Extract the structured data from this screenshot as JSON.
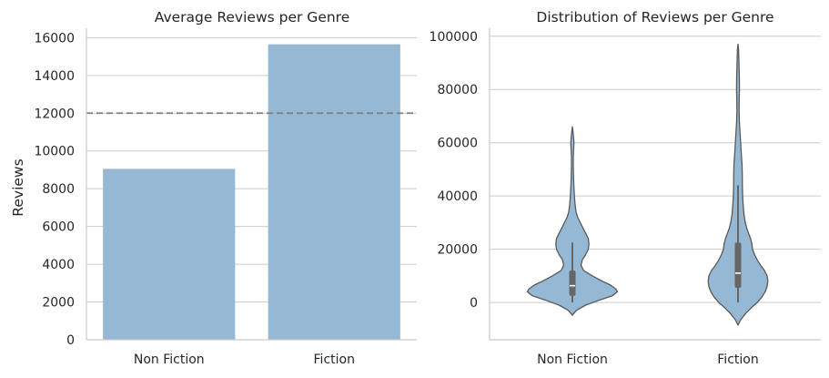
{
  "chart_data": [
    {
      "type": "bar",
      "title": "Average Reviews per Genre",
      "xlabel": "",
      "ylabel": "Reviews",
      "categories": [
        "Non Fiction",
        "Fiction"
      ],
      "values": [
        9050,
        15650
      ],
      "ylim": [
        0,
        16500
      ],
      "yticks": [
        0,
        2000,
        4000,
        6000,
        8000,
        10000,
        12000,
        14000,
        16000
      ],
      "ytick_labels": [
        "0",
        "2000",
        "4000",
        "6000",
        "8000",
        "10000",
        "12000",
        "14000",
        "16000"
      ],
      "reference_line": 12000,
      "grid": true,
      "color": "#95b8d4"
    },
    {
      "type": "violin",
      "title": "Distribution of Reviews per Genre",
      "xlabel": "",
      "ylabel": "",
      "categories": [
        "Non Fiction",
        "Fiction"
      ],
      "ylim": [
        -14000,
        103000
      ],
      "yticks": [
        0,
        20000,
        40000,
        60000,
        80000,
        100000
      ],
      "ytick_labels": [
        "0",
        "20000",
        "40000",
        "60000",
        "80000",
        "100000"
      ],
      "grid": true,
      "color": "#95b8d4",
      "violins": [
        {
          "category": "Non Fiction",
          "range": [
            -4800,
            66000
          ],
          "q1": 2500,
          "median": 6300,
          "q3": 12000,
          "whisker_low": 0,
          "whisker_high": 22500,
          "profile": [
            [
              -4800,
              0.0
            ],
            [
              -3000,
              0.06
            ],
            [
              -1000,
              0.2
            ],
            [
              1000,
              0.42
            ],
            [
              2500,
              0.6
            ],
            [
              4000,
              0.68
            ],
            [
              5000,
              0.66
            ],
            [
              6500,
              0.58
            ],
            [
              8000,
              0.45
            ],
            [
              10000,
              0.3
            ],
            [
              12000,
              0.17
            ],
            [
              14000,
              0.13
            ],
            [
              16000,
              0.15
            ],
            [
              18000,
              0.2
            ],
            [
              20000,
              0.24
            ],
            [
              22000,
              0.25
            ],
            [
              24000,
              0.24
            ],
            [
              26000,
              0.2
            ],
            [
              28000,
              0.16
            ],
            [
              30000,
              0.12
            ],
            [
              32000,
              0.08
            ],
            [
              34000,
              0.055
            ],
            [
              37000,
              0.04
            ],
            [
              40000,
              0.03
            ],
            [
              44000,
              0.022
            ],
            [
              48000,
              0.017
            ],
            [
              52000,
              0.014
            ],
            [
              55000,
              0.014
            ],
            [
              58000,
              0.02
            ],
            [
              60000,
              0.024
            ],
            [
              62000,
              0.018
            ],
            [
              64000,
              0.01
            ],
            [
              66000,
              0.0
            ]
          ]
        },
        {
          "category": "Fiction",
          "range": [
            -8500,
            97000
          ],
          "q1": 5500,
          "median": 11000,
          "q3": 22500,
          "whisker_low": 0,
          "whisker_high": 44000,
          "profile": [
            [
              -8500,
              0.0
            ],
            [
              -6500,
              0.04
            ],
            [
              -4000,
              0.12
            ],
            [
              -2000,
              0.2
            ],
            [
              0,
              0.29
            ],
            [
              2000,
              0.36
            ],
            [
              4000,
              0.41
            ],
            [
              6000,
              0.44
            ],
            [
              8000,
              0.45
            ],
            [
              10000,
              0.44
            ],
            [
              12000,
              0.4
            ],
            [
              14000,
              0.34
            ],
            [
              16000,
              0.29
            ],
            [
              18000,
              0.25
            ],
            [
              20000,
              0.22
            ],
            [
              22000,
              0.21
            ],
            [
              24000,
              0.19
            ],
            [
              26000,
              0.16
            ],
            [
              28000,
              0.13
            ],
            [
              30000,
              0.11
            ],
            [
              33000,
              0.09
            ],
            [
              36000,
              0.08
            ],
            [
              40000,
              0.07
            ],
            [
              44000,
              0.066
            ],
            [
              48000,
              0.064
            ],
            [
              52000,
              0.06
            ],
            [
              56000,
              0.05
            ],
            [
              60000,
              0.04
            ],
            [
              64000,
              0.03
            ],
            [
              68000,
              0.02
            ],
            [
              72000,
              0.016
            ],
            [
              76000,
              0.018
            ],
            [
              80000,
              0.022
            ],
            [
              84000,
              0.02
            ],
            [
              88000,
              0.016
            ],
            [
              92000,
              0.012
            ],
            [
              95000,
              0.008
            ],
            [
              97000,
              0.0
            ]
          ]
        }
      ]
    }
  ]
}
